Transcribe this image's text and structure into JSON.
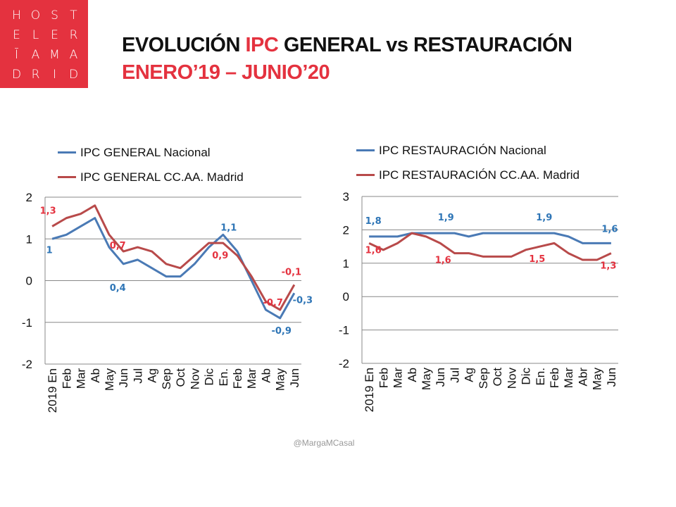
{
  "logo": {
    "letters": [
      "H",
      "O",
      "S",
      "T",
      "E",
      "L",
      "E",
      "R",
      "Ī",
      "A",
      "M",
      "A",
      "D",
      "R",
      "I",
      "D"
    ]
  },
  "header": {
    "title_part1": "EVOLUCIÓN ",
    "title_highlight": "IPC",
    "title_part2": " GENERAL vs RESTAURACIÓN",
    "subtitle": "ENERO’19 – JUNIO’20"
  },
  "credit": "@MargaMCasal",
  "colors": {
    "blue": "#4a7ab5",
    "red": "#b84a4a",
    "blue_label": "#2e75b6",
    "red_label": "#e4323f",
    "accent": "#e4323f"
  },
  "chart_data": [
    {
      "type": "line",
      "categories": [
        "2019 En",
        "Feb",
        "Mar",
        "Ab",
        "May",
        "Jun",
        "Jul",
        "Ag",
        "Sep",
        "Oct",
        "Nov",
        "Dic",
        "En.",
        "Feb",
        "Mar",
        "Ab",
        "May",
        "Jun"
      ],
      "ylim": [
        -2,
        2
      ],
      "yticks": [
        "2",
        "1",
        "0",
        "-1",
        "-2"
      ],
      "ytick_values": [
        2,
        1,
        0,
        -1,
        -2
      ],
      "grid": true,
      "legend": "top",
      "series": [
        {
          "name": "IPC GENERAL Nacional",
          "color": "#4a7ab5",
          "values": [
            1,
            1.1,
            1.3,
            1.5,
            0.8,
            0.4,
            0.5,
            0.3,
            0.1,
            0.1,
            0.4,
            0.8,
            1.1,
            0.7,
            0,
            -0.7,
            -0.9,
            -0.3
          ],
          "data_labels": [
            {
              "index": 0,
              "text": "1"
            },
            {
              "index": 5,
              "text": "0,4"
            },
            {
              "index": 12,
              "text": "1,1"
            },
            {
              "index": 16,
              "text": "-0,9"
            },
            {
              "index": 17,
              "text": "-0,3"
            }
          ]
        },
        {
          "name": "IPC GENERAL CC.AA. Madrid",
          "color": "#b84a4a",
          "values": [
            1.3,
            1.5,
            1.6,
            1.8,
            1.1,
            0.7,
            0.8,
            0.7,
            0.4,
            0.3,
            0.6,
            0.9,
            0.9,
            0.6,
            0.1,
            -0.5,
            -0.7,
            -0.1
          ],
          "data_labels": [
            {
              "index": 0,
              "text": "1,3"
            },
            {
              "index": 5,
              "text": "0,7"
            },
            {
              "index": 12,
              "text": "0,9"
            },
            {
              "index": 16,
              "text": "-0,7"
            },
            {
              "index": 17,
              "text": "-0,1"
            }
          ]
        }
      ]
    },
    {
      "type": "line",
      "categories": [
        "2019 En",
        "Feb",
        "Mar",
        "Ab",
        "May",
        "Jun",
        "Jul",
        "Ag",
        "Sep",
        "Oct",
        "Nov",
        "Dic",
        "En.",
        "Feb",
        "Mar",
        "Abr",
        "May",
        "Jun"
      ],
      "ylim": [
        -2,
        3
      ],
      "yticks": [
        "3",
        "2",
        "1",
        "0",
        "-1",
        "-2"
      ],
      "ytick_values": [
        3,
        2,
        1,
        0,
        -1,
        -2
      ],
      "grid": true,
      "legend": "top",
      "series": [
        {
          "name": "IPC RESTAURACIÓN Nacional",
          "color": "#4a7ab5",
          "values": [
            1.8,
            1.8,
            1.8,
            1.9,
            1.9,
            1.9,
            1.9,
            1.8,
            1.9,
            1.9,
            1.9,
            1.9,
            1.9,
            1.9,
            1.8,
            1.6,
            1.6,
            1.6
          ],
          "data_labels": [
            {
              "index": 0,
              "text": "1,8"
            },
            {
              "index": 5,
              "text": "1,9"
            },
            {
              "index": 12,
              "text": "1,9"
            },
            {
              "index": 17,
              "text": "1,6"
            }
          ]
        },
        {
          "name": "IPC RESTAURACIÓN CC.AA. Madrid",
          "color": "#b84a4a",
          "values": [
            1.6,
            1.4,
            1.6,
            1.9,
            1.8,
            1.6,
            1.3,
            1.3,
            1.2,
            1.2,
            1.2,
            1.4,
            1.5,
            1.6,
            1.3,
            1.1,
            1.1,
            1.3
          ],
          "data_labels": [
            {
              "index": 0,
              "text": "1,6"
            },
            {
              "index": 5,
              "text": "1,6"
            },
            {
              "index": 12,
              "text": "1,5"
            },
            {
              "index": 17,
              "text": "1,3"
            }
          ]
        }
      ]
    }
  ]
}
